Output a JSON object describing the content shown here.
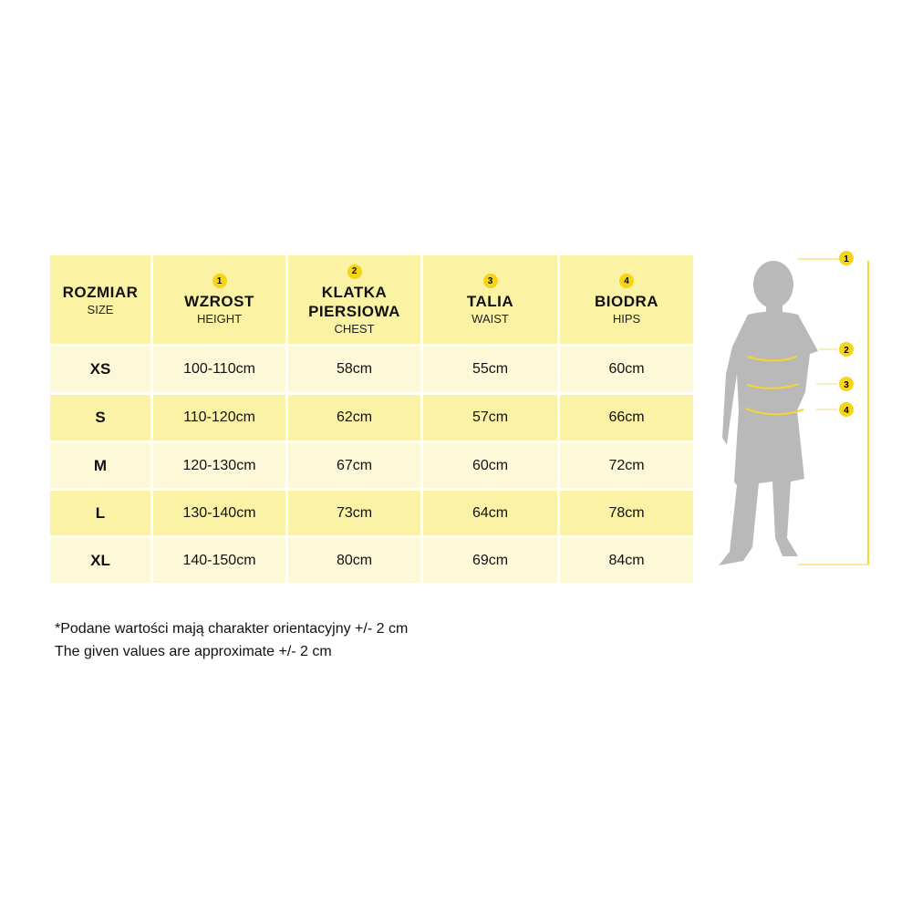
{
  "table": {
    "columns": [
      {
        "title": "ROZMIAR",
        "subtitle": "SIZE",
        "marker": ""
      },
      {
        "title": "WZROST",
        "subtitle": "HEIGHT",
        "marker": "1"
      },
      {
        "title": "KLATKA PIERSIOWA",
        "subtitle": "CHEST",
        "marker": "2"
      },
      {
        "title": "TALIA",
        "subtitle": "WAIST",
        "marker": "3"
      },
      {
        "title": "BIODRA",
        "subtitle": "HIPS",
        "marker": "4"
      }
    ],
    "rows": [
      [
        "XS",
        "100-110cm",
        "58cm",
        "55cm",
        "60cm"
      ],
      [
        "S",
        "110-120cm",
        "62cm",
        "57cm",
        "66cm"
      ],
      [
        "M",
        "120-130cm",
        "67cm",
        "60cm",
        "72cm"
      ],
      [
        "L",
        "130-140cm",
        "73cm",
        "64cm",
        "78cm"
      ],
      [
        "XL",
        "140-150cm",
        "80cm",
        "69cm",
        "84cm"
      ]
    ]
  },
  "notes": {
    "polish": "*Podane wartości mają charakter orientacyjny +/- 2 cm",
    "english": "The given values are approximate +/- 2 cm"
  },
  "figure": {
    "markers": [
      "1",
      "2",
      "3",
      "4"
    ]
  },
  "colors": {
    "header": "#fbf2a3",
    "row_light": "#fdf9d8",
    "row_dark": "#fbf2a5",
    "marker": "#f6d416",
    "silhouette": "#b9b9b9"
  }
}
